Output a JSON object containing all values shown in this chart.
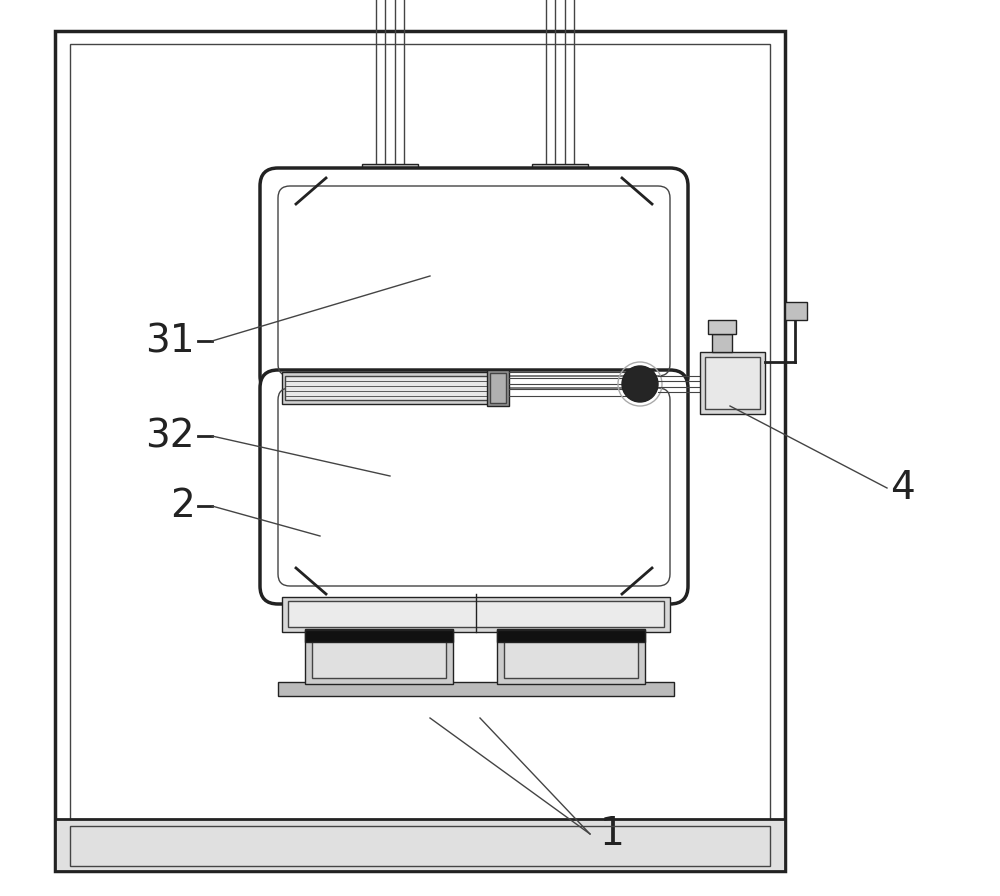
{
  "bg_color": "#ffffff",
  "line_color": "#444444",
  "dark_color": "#222222",
  "mid_gray": "#aaaaaa",
  "light_gray": "#dddddd",
  "label_fontsize": 28,
  "lw_main": 2.0,
  "lw_thin": 1.0,
  "lw_thick": 2.5
}
